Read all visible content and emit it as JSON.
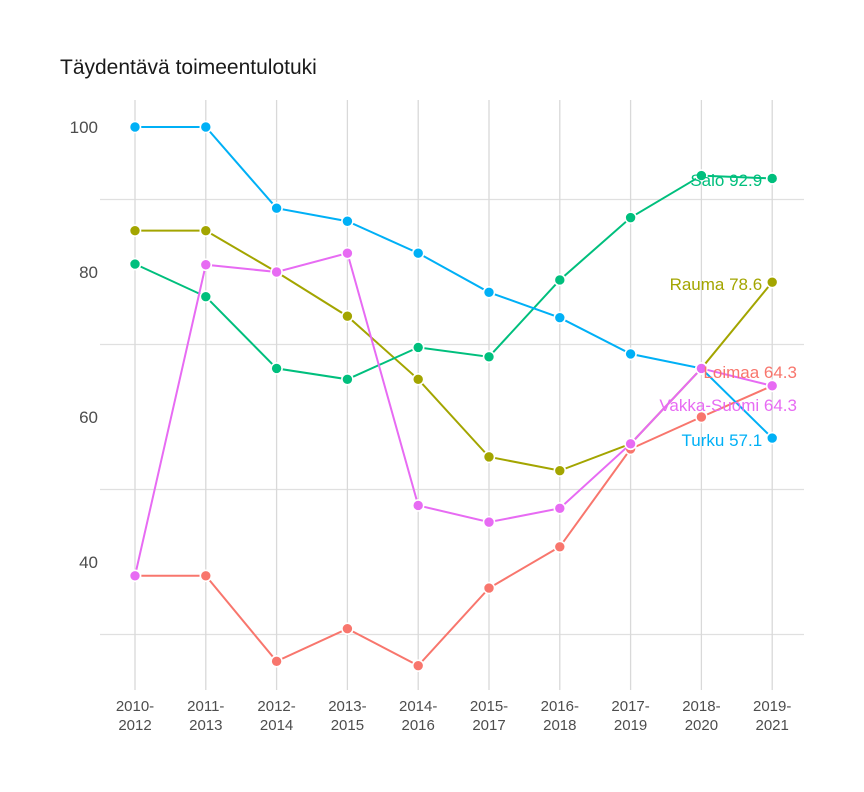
{
  "chart_data": {
    "type": "line",
    "title": "Täydentävä toimeentulotuki",
    "xlabel": "",
    "ylabel": "",
    "ylim": [
      23,
      104
    ],
    "yticks": [
      40,
      60,
      80,
      100
    ],
    "grid": true,
    "legend_position": "direct-labels-at-line-end",
    "categories": [
      "2010-\n2012",
      "2011-\n2013",
      "2012-\n2014",
      "2013-\n2015",
      "2014-\n2016",
      "2015-\n2017",
      "2016-\n2018",
      "2017-\n2019",
      "2018-\n2020",
      "2019-\n2021"
    ],
    "series": [
      {
        "name": "Loimaa",
        "color": "#F8766D",
        "end_label": "Loimaa 64.3",
        "values": [
          38.1,
          38.1,
          26.3,
          30.8,
          25.7,
          36.4,
          42.1,
          55.6,
          60.0,
          64.3
        ]
      },
      {
        "name": "Rauma",
        "color": "#A3A500",
        "end_label": "Rauma 78.6",
        "values": [
          85.7,
          85.7,
          80.0,
          73.9,
          65.2,
          54.5,
          52.6,
          56.3,
          66.7,
          78.6
        ]
      },
      {
        "name": "Salo",
        "color": "#00BF7D",
        "end_label": "Salo 92.9",
        "values": [
          81.1,
          76.6,
          66.7,
          65.2,
          69.6,
          68.3,
          78.9,
          87.5,
          93.3,
          92.9
        ]
      },
      {
        "name": "Turku",
        "color": "#00B0F6",
        "end_label": "Turku 57.1",
        "values": [
          100.0,
          100.0,
          88.8,
          87.0,
          82.6,
          77.2,
          73.7,
          68.7,
          66.7,
          57.1
        ]
      },
      {
        "name": "Vakka-Suomi",
        "color": "#E76BF3",
        "end_label": "Vakka-Suomi 64.3",
        "values": [
          38.1,
          81.0,
          80.0,
          82.6,
          47.8,
          45.5,
          47.4,
          56.3,
          66.7,
          64.3
        ]
      }
    ],
    "label_positions": {
      "Salo": 186,
      "Rauma": 290,
      "Loimaa": 378,
      "Vakka-Suomi": 411,
      "Turku": 446
    }
  }
}
